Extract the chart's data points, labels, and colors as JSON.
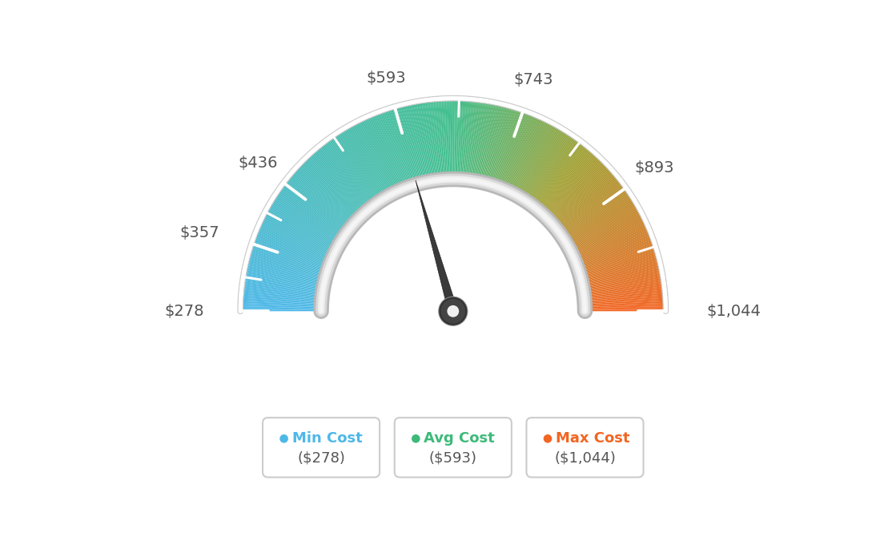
{
  "min_val": 278,
  "avg_val": 593,
  "max_val": 1044,
  "tick_values": [
    278,
    357,
    436,
    593,
    743,
    893,
    1044
  ],
  "tick_labels": [
    "$278",
    "$357",
    "$436",
    "$593",
    "$743",
    "$893",
    "$1,044"
  ],
  "legend_min_label": "Min Cost",
  "legend_avg_label": "Avg Cost",
  "legend_max_label": "Max Cost",
  "legend_min_val": "($278)",
  "legend_avg_val": "($593)",
  "legend_max_val": "($1,044)",
  "legend_min_color": "#4db8e8",
  "legend_avg_color": "#3dba7a",
  "legend_max_color": "#f26522",
  "bg_color": "#ffffff",
  "needle_value": 593,
  "color_blue": [
    77,
    184,
    232
  ],
  "color_green": [
    77,
    186,
    127
  ],
  "color_orange": [
    242,
    101,
    34
  ],
  "color_olive": [
    140,
    160,
    60
  ]
}
